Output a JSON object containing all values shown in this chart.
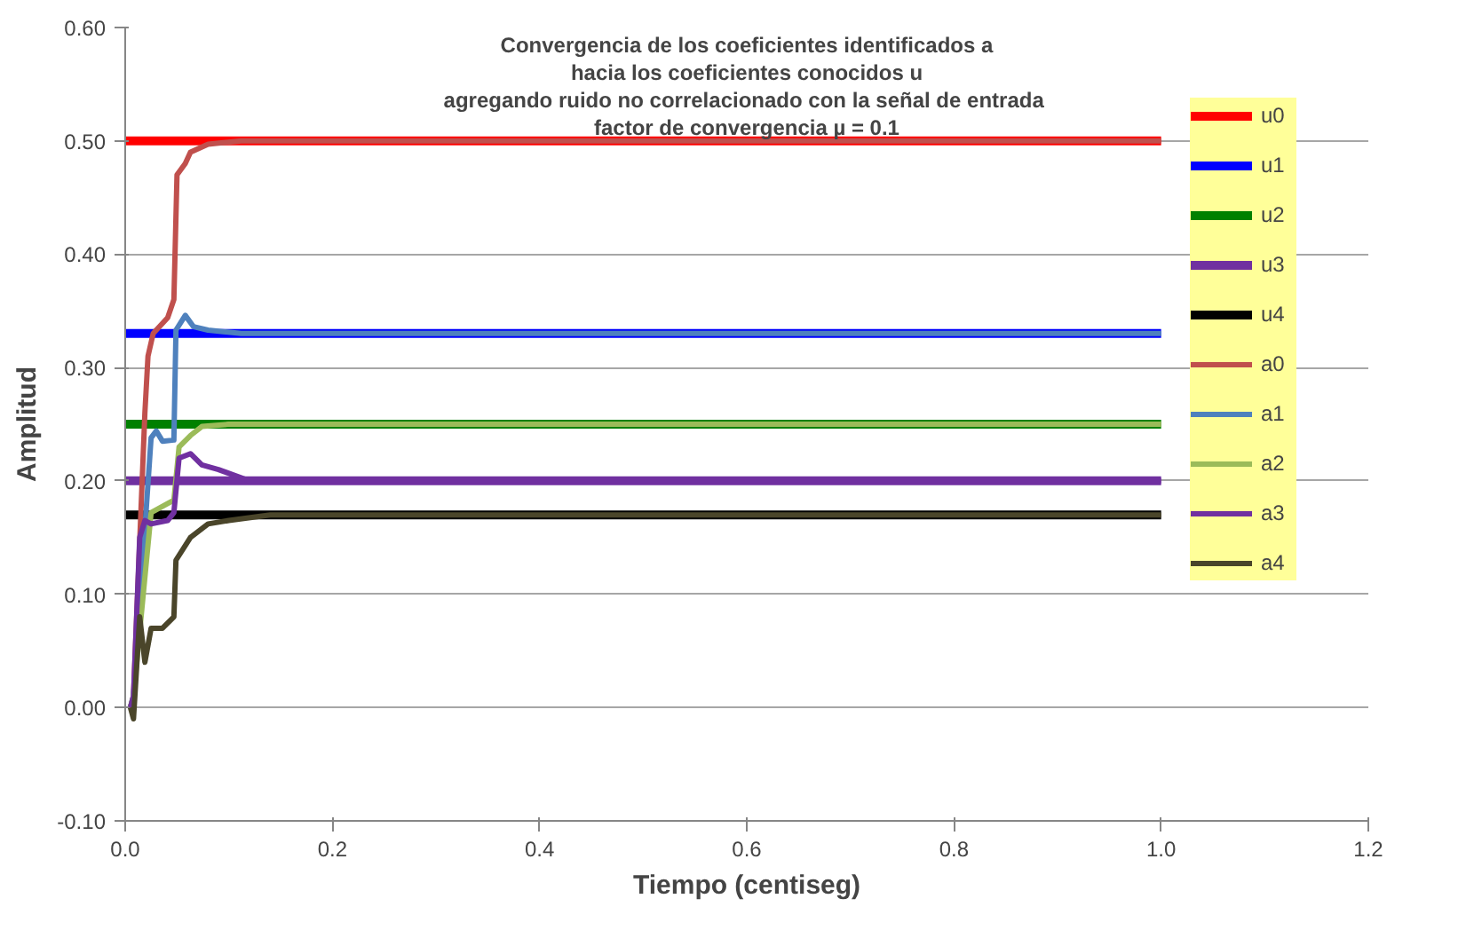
{
  "chart_data": {
    "type": "line",
    "title": "Convergencia de los coeficientes identificados a\nhacia los coeficientes conocidos u\nagregando ruido no correlacionado  con la señal de entrada\nfactor de convergencia µ = 0.1",
    "xlabel": "Tiempo (centiseg)",
    "ylabel": "Amplitud",
    "xlim": [
      0,
      1.2
    ],
    "ylim": [
      -0.1,
      0.6
    ],
    "xticks": [
      {
        "value": 0,
        "label": "0.0"
      },
      {
        "value": 0.2,
        "label": "0.2"
      },
      {
        "value": 0.4,
        "label": "0.4"
      },
      {
        "value": 0.6,
        "label": "0.6"
      },
      {
        "value": 0.8,
        "label": "0.8"
      },
      {
        "value": 1,
        "label": "1.0"
      },
      {
        "value": 1.2,
        "label": "1.2"
      }
    ],
    "yticks": [
      {
        "value": -0.1,
        "label": "-0.10"
      },
      {
        "value": 0,
        "label": "0.00"
      },
      {
        "value": 0.1,
        "label": "0.10"
      },
      {
        "value": 0.2,
        "label": "0.20"
      },
      {
        "value": 0.3,
        "label": "0.30"
      },
      {
        "value": 0.4,
        "label": "0.40"
      },
      {
        "value": 0.5,
        "label": "0.50"
      },
      {
        "value": 0.6,
        "label": "0.60"
      }
    ],
    "grid": "y",
    "legend": "top right",
    "marker": "none",
    "line_style": "solid",
    "series": [
      {
        "name": "u0",
        "color": "#ff0000",
        "x": [
          0,
          1
        ],
        "values": [
          0.5,
          0.5
        ]
      },
      {
        "name": "u1",
        "color": "#0000ff",
        "x": [
          0,
          1
        ],
        "values": [
          0.33,
          0.33
        ]
      },
      {
        "name": "u2",
        "color": "#008000",
        "x": [
          0,
          1
        ],
        "values": [
          0.25,
          0.25
        ]
      },
      {
        "name": "u3",
        "color": "#7030a0",
        "x": [
          0,
          1
        ],
        "values": [
          0.2,
          0.2
        ]
      },
      {
        "name": "u4",
        "color": "#000000",
        "x": [
          0,
          1
        ],
        "values": [
          0.17,
          0.17
        ]
      },
      {
        "name": "a0",
        "color": "#c0504d",
        "x": [
          0.005,
          0.008,
          0.019,
          0.022,
          0.027,
          0.041,
          0.047,
          0.05,
          0.058,
          0.063,
          0.08,
          0.112,
          1
        ],
        "values": [
          0,
          0.01,
          0.26,
          0.31,
          0.33,
          0.344,
          0.36,
          0.47,
          0.48,
          0.49,
          0.497,
          0.5,
          0.5
        ]
      },
      {
        "name": "a1",
        "color": "#4f81bd",
        "x": [
          0.005,
          0.008,
          0.025,
          0.03,
          0.036,
          0.047,
          0.049,
          0.058,
          0.066,
          0.08,
          0.112,
          1
        ],
        "values": [
          0,
          0.01,
          0.238,
          0.244,
          0.235,
          0.236,
          0.333,
          0.346,
          0.336,
          0.333,
          0.33,
          0.33
        ]
      },
      {
        "name": "a2",
        "color": "#9bbb59",
        "x": [
          0.005,
          0.008,
          0.025,
          0.041,
          0.047,
          0.052,
          0.063,
          0.074,
          0.1,
          1
        ],
        "values": [
          0,
          0.01,
          0.172,
          0.18,
          0.183,
          0.23,
          0.24,
          0.248,
          0.25,
          0.25
        ]
      },
      {
        "name": "a3",
        "color": "#7030a0",
        "x": [
          0.005,
          0.008,
          0.014,
          0.019,
          0.025,
          0.041,
          0.047,
          0.052,
          0.063,
          0.074,
          0.09,
          0.12,
          1
        ],
        "values": [
          0,
          0.01,
          0.15,
          0.165,
          0.162,
          0.165,
          0.172,
          0.22,
          0.224,
          0.214,
          0.21,
          0.2,
          0.2
        ]
      },
      {
        "name": "a4",
        "color": "#4a452a",
        "x": [
          0.005,
          0.008,
          0.014,
          0.019,
          0.025,
          0.036,
          0.047,
          0.049,
          0.063,
          0.08,
          0.1,
          0.14,
          1
        ],
        "values": [
          0,
          -0.01,
          0.08,
          0.04,
          0.07,
          0.07,
          0.08,
          0.13,
          0.15,
          0.162,
          0.165,
          0.17,
          0.17
        ]
      }
    ]
  }
}
